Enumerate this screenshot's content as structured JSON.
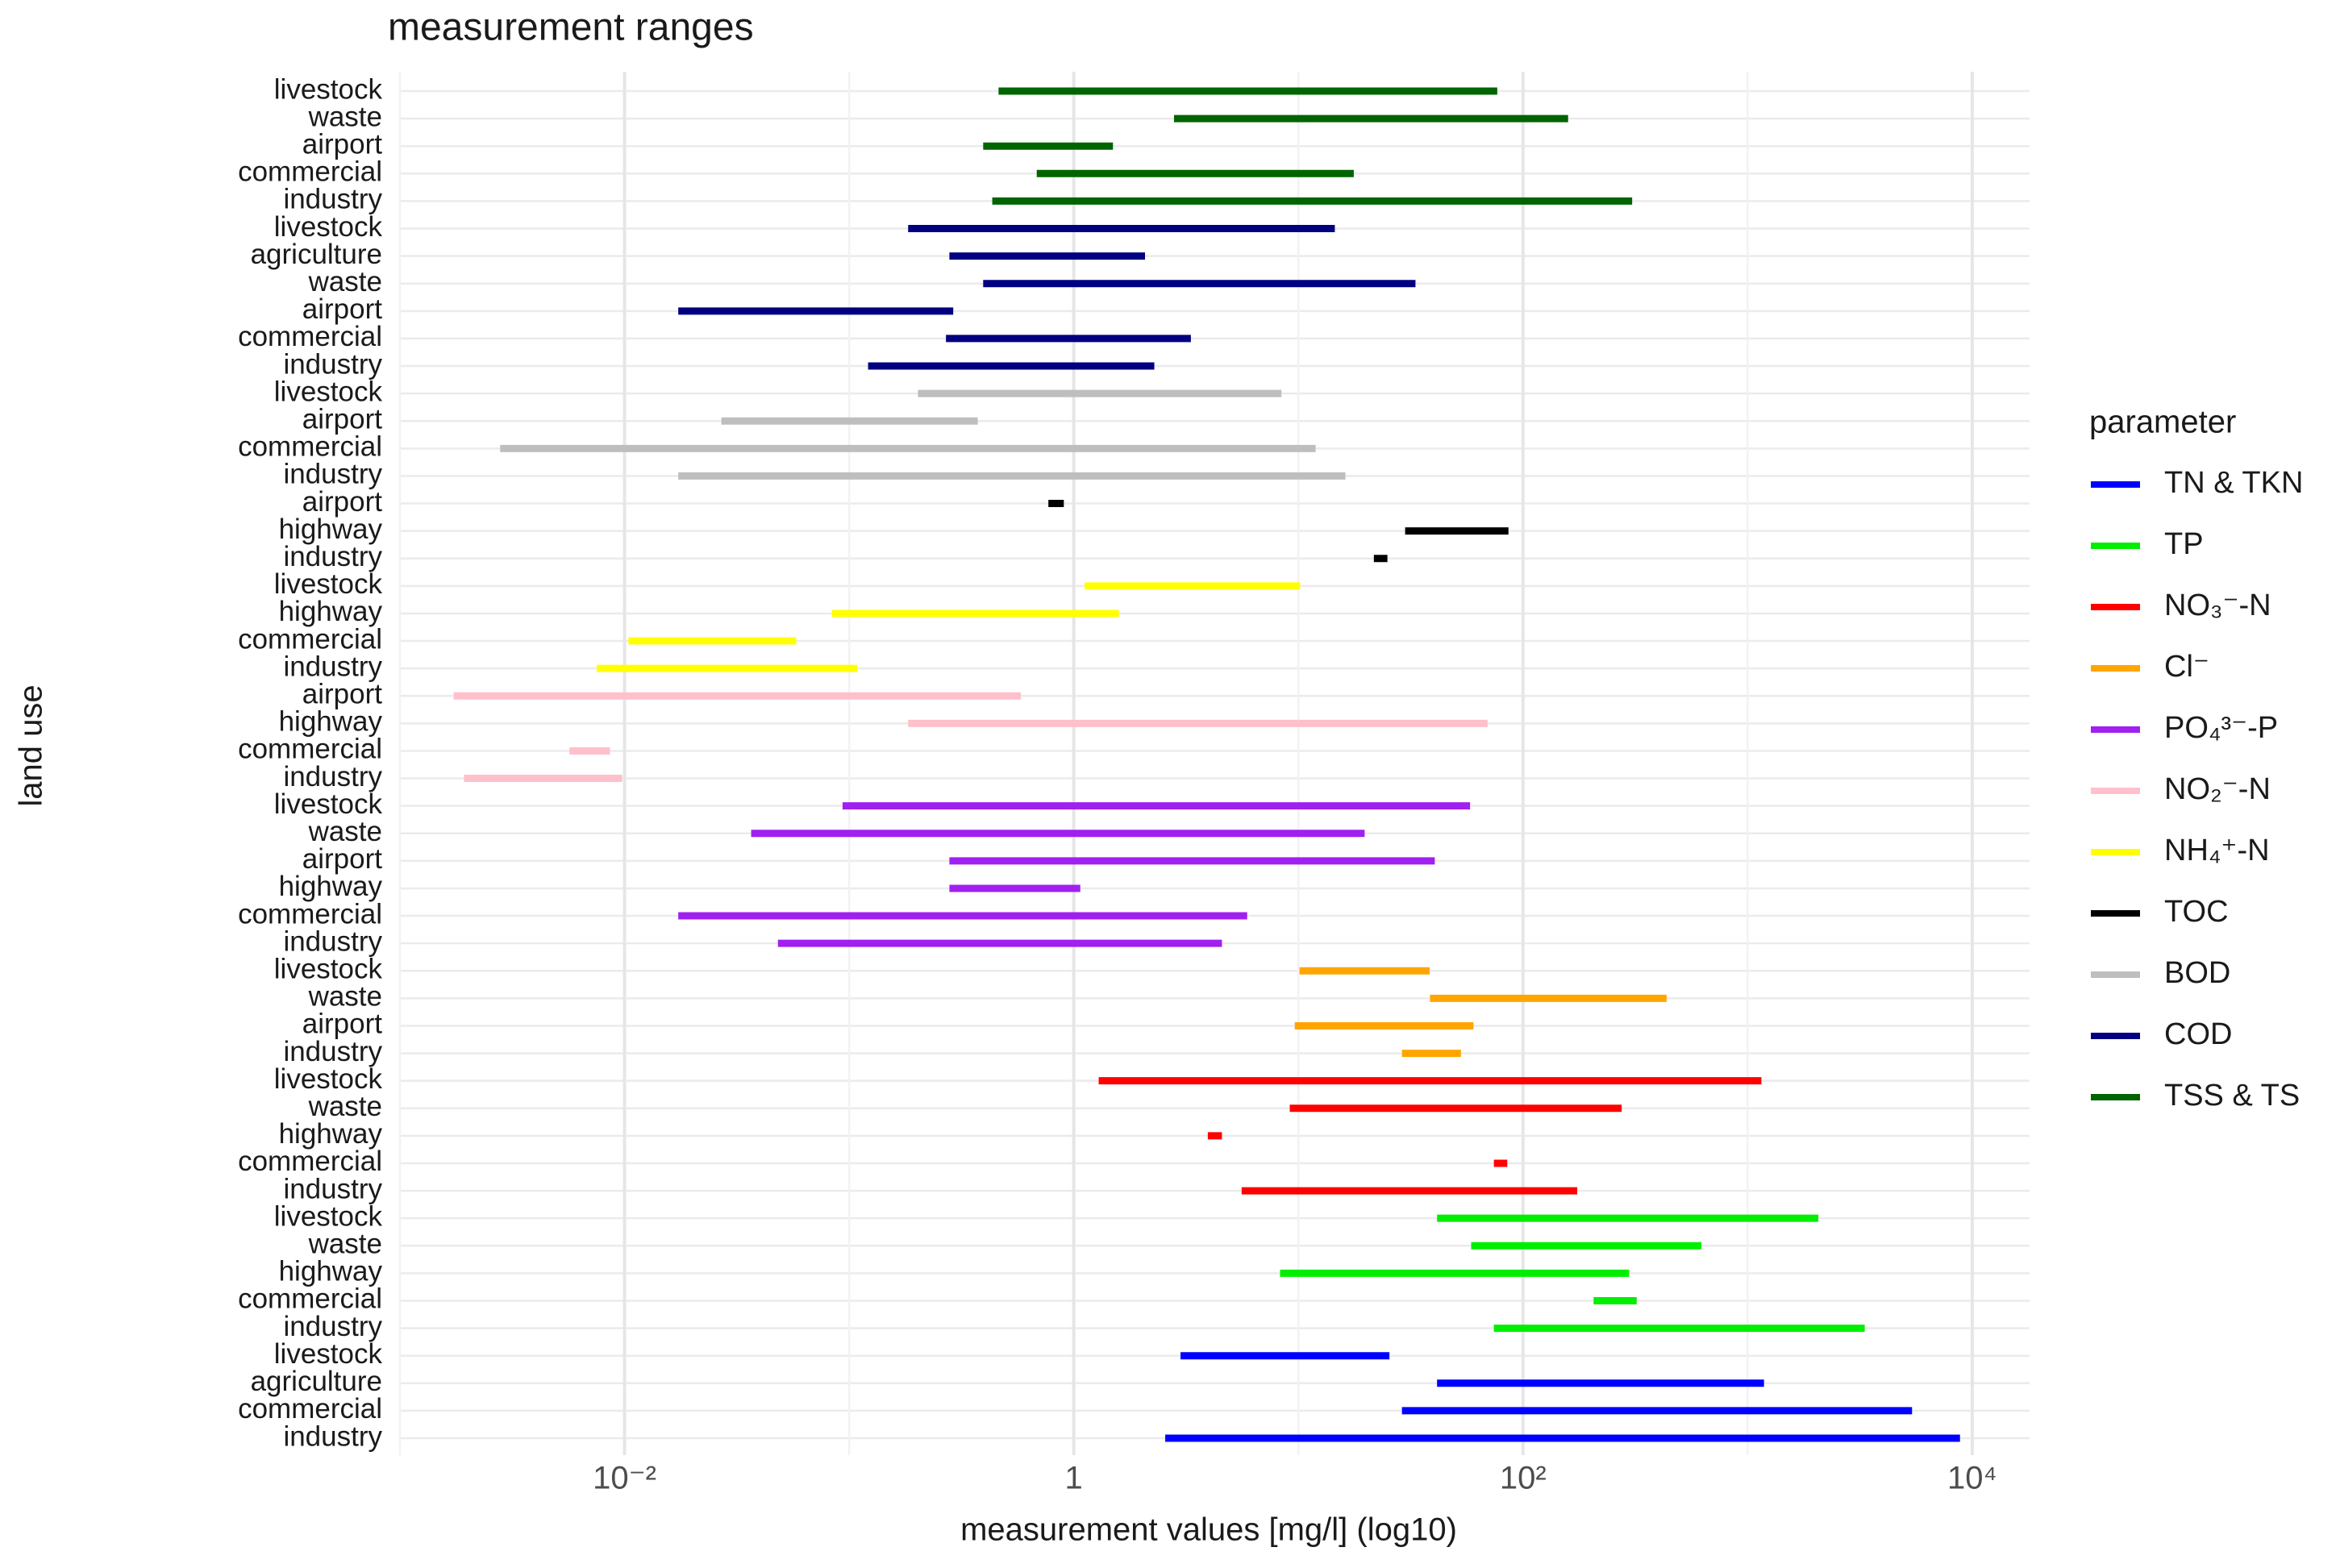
{
  "chart_data": {
    "type": "range",
    "title": "measurement ranges",
    "x_label": "measurement values [mg/l] (log10)",
    "y_label": "land use",
    "xscale": "log",
    "grid": true,
    "xlim": [
      0.001,
      18000
    ],
    "xticks": [
      {
        "value": 0.01,
        "label": "10⁻²"
      },
      1,
      {
        "value": 100,
        "label": "10²"
      },
      {
        "value": 10000,
        "label": "10⁴"
      }
    ],
    "x_minor_grid": [
      0.001,
      0.1,
      10,
      1000
    ],
    "legend_title": "parameter",
    "legend": "right",
    "series": [
      {
        "name": "TN & TKN",
        "color": "#0000ff",
        "categories": [
          "industry",
          "commercial",
          "agriculture",
          "livestock"
        ],
        "low": [
          2.65,
          30,
          43,
          3.1
        ],
        "high": [
          8500,
          5200,
          1140,
          24.5
        ]
      },
      {
        "name": "TP",
        "color": "#00ee00",
        "categories": [
          "industry",
          "commercial",
          "highway",
          "waste",
          "livestock"
        ],
        "low": [
          77,
          214,
          8.6,
          61,
          43
        ],
        "high": [
          3200,
          309,
          286,
          600,
          1990
        ]
      },
      {
        "name": "NO₃⁻-N",
        "color": "#ff0000",
        "categories": [
          "industry",
          "commercial",
          "highway",
          "waste",
          "livestock"
        ],
        "low": [
          5.8,
          77,
          4.1,
          9.5,
          1.34
        ],
        "high": [
          168,
          82,
          4.4,
          265,
          1110
        ]
      },
      {
        "name": "Cl⁻",
        "color": "#ffa500",
        "categories": [
          "industry",
          "airport",
          "waste",
          "livestock"
        ],
        "low": [
          30,
          10,
          40,
          10.5
        ],
        "high": [
          51,
          58,
          420,
          37
        ]
      },
      {
        "name": "PO₄³⁻-P",
        "color": "#a020f0",
        "categories": [
          "industry",
          "commercial",
          "highway",
          "airport",
          "waste",
          "livestock"
        ],
        "low": [
          0.05,
          0.018,
          0.29,
          0.29,
          0.038,
          0.097
        ],
        "high": [
          4.4,
          5.7,
          1.03,
          39,
          19,
          56
        ]
      },
      {
        "name": "NO₂⁻-N",
        "color": "#ffc0cb",
        "categories": [
          "industry",
          "commercial",
          "highway",
          "airport"
        ],
        "low": [
          0.002,
          0.0059,
          0.19,
          0.0018
        ],
        "high": [
          0.0094,
          0.0083,
          67,
          0.56
        ]
      },
      {
        "name": "NH₄⁺-N",
        "color": "#ffff00",
        "categories": [
          "industry",
          "commercial",
          "highway",
          "livestock"
        ],
        "low": [
          0.0078,
          0.0108,
          0.087,
          1.16
        ],
        "high": [
          0.105,
          0.056,
          1.53,
          9.8
        ]
      },
      {
        "name": "TOC",
        "color": "#000000",
        "categories": [
          "industry",
          "highway",
          "airport"
        ],
        "low": [
          22.5,
          31,
          0.8
        ],
        "high": [
          24,
          83,
          0.87
        ]
      },
      {
        "name": "BOD",
        "color": "#bebebe",
        "categories": [
          "industry",
          "commercial",
          "airport",
          "livestock"
        ],
        "low": [
          0.018,
          0.0029,
          0.028,
          0.21
        ],
        "high": [
          15.6,
          11.5,
          0.36,
          8.1
        ]
      },
      {
        "name": "COD",
        "color": "#000080",
        "categories": [
          "industry",
          "commercial",
          "airport",
          "waste",
          "agriculture",
          "livestock"
        ],
        "low": [
          0.126,
          0.28,
          0.018,
          0.41,
          0.29,
          0.19
        ],
        "high": [
          2.2,
          3.2,
          0.28,
          32,
          2.0,
          14
        ]
      },
      {
        "name": "TSS & TS",
        "color": "#006400",
        "categories": [
          "industry",
          "commercial",
          "airport",
          "waste",
          "livestock"
        ],
        "low": [
          0.45,
          0.71,
          0.41,
          2.9,
          0.48
        ],
        "high": [
          295,
          17,
          1.44,
          153,
          74
        ]
      }
    ]
  }
}
